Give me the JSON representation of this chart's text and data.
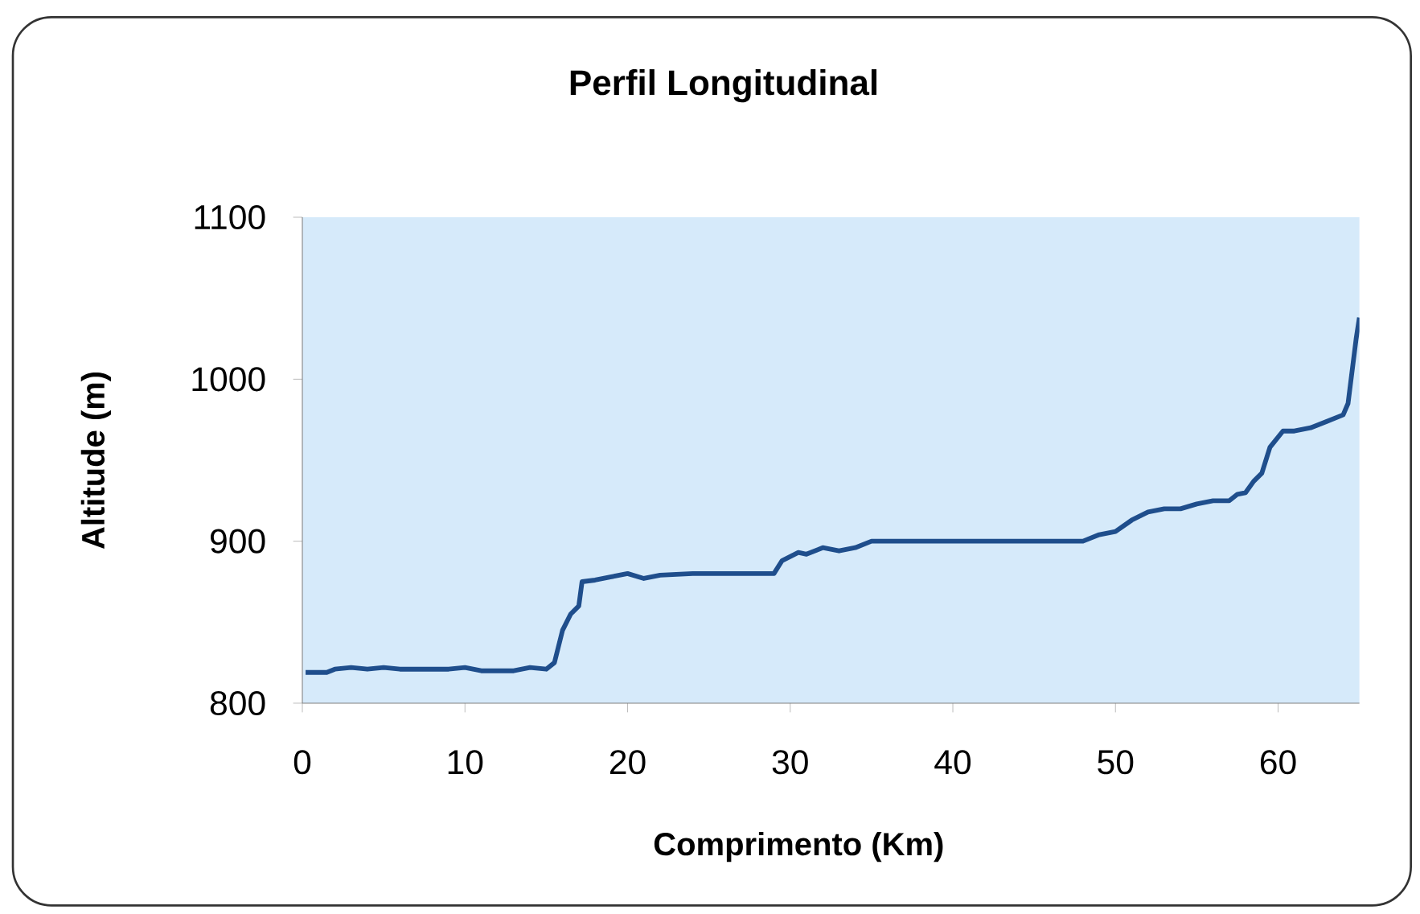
{
  "chart_data": {
    "type": "line",
    "title": "Perfil Longitudinal",
    "xlabel": "Comprimento (Km)",
    "ylabel": "Altitude (m)",
    "xlim": [
      0,
      65
    ],
    "ylim": [
      800,
      1100
    ],
    "xticks": [
      0,
      10,
      20,
      30,
      40,
      50,
      60
    ],
    "yticks": [
      800,
      900,
      1000,
      1100
    ],
    "marker": "none",
    "line_style": "solid",
    "series": [
      {
        "color": "#1f4e8c",
        "x": [
          0.2,
          1.5,
          2,
          3,
          4,
          5,
          6,
          7,
          9,
          10,
          11,
          13,
          14,
          15,
          15.5,
          16,
          16.5,
          17,
          17.2,
          18,
          19,
          20,
          21,
          22,
          24,
          29,
          29.5,
          30.5,
          31,
          32,
          33,
          34,
          35,
          40,
          48,
          49,
          50,
          51,
          52,
          53,
          54,
          55,
          56,
          57,
          57.5,
          58,
          58.5,
          59,
          59.5,
          60.3,
          61,
          62,
          63,
          64,
          64.3,
          64.8,
          65
        ],
        "values": [
          819,
          819,
          821,
          822,
          821,
          822,
          821,
          821,
          821,
          822,
          820,
          820,
          822,
          821,
          825,
          845,
          855,
          860,
          875,
          876,
          878,
          880,
          877,
          879,
          880,
          880,
          888,
          893,
          892,
          896,
          894,
          896,
          900,
          900,
          900,
          904,
          906,
          913,
          918,
          920,
          920,
          923,
          925,
          925,
          929,
          930,
          937,
          942,
          958,
          968,
          968,
          970,
          974,
          978,
          985,
          1025,
          1038
        ]
      }
    ]
  }
}
